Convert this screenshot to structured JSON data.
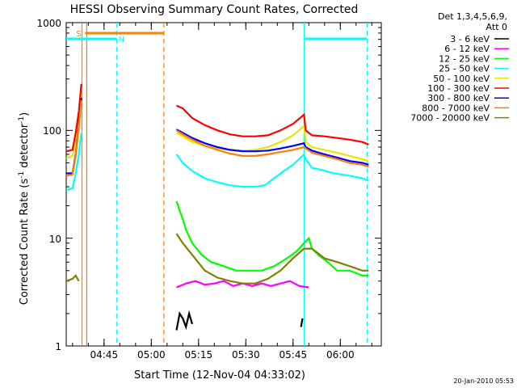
{
  "chart_data": {
    "type": "line",
    "title": "HESSI Observing Summary Count Rates, Corrected",
    "xlabel": "Start Time (12-Nov-04 04:33:02)",
    "ylabel": "Corrected Count Rate (s",
    "ylabel_sup": "-1",
    "ylabel_mid": " detector",
    "ylabel_tail": ")",
    "x_range_minutes_after_0433": [
      0,
      100
    ],
    "ylim": [
      1,
      1000
    ],
    "y_scale": "log",
    "x_ticks": [
      "04:45",
      "05:00",
      "05:15",
      "05:30",
      "05:45",
      "06:00"
    ],
    "y_ticks": [
      "1",
      "10",
      "100",
      "1000"
    ],
    "legend_header": [
      "Det 1,3,4,5,6,9,",
      "Att 0"
    ],
    "legend_position": "right",
    "footer": "20-Jan-2010 05:53",
    "annotations": [
      {
        "label": "S",
        "color": "#ff8000",
        "x_start_min": 6,
        "x_end_min": 31
      },
      {
        "label": "N",
        "color": "#00ffff",
        "x_start_min": 0,
        "x_end_min": 16
      }
    ],
    "vertical_markers": [
      {
        "x_min": 5,
        "color": "#ff8000",
        "style": "solid"
      },
      {
        "x_min": 6.5,
        "color": "#ff8000",
        "style": "solid"
      },
      {
        "x_min": 16,
        "color": "#00ffff",
        "style": "dashed"
      },
      {
        "x_min": 31,
        "color": "#ff8000",
        "style": "dashed"
      },
      {
        "x_min": 75.5,
        "color": "#00ffff",
        "style": "solid"
      },
      {
        "x_min": 95.5,
        "color": "#00ffff",
        "style": "dashed"
      }
    ],
    "series": [
      {
        "name": "3 - 6 keV",
        "color": "#000000",
        "points": [
          [
            35,
            1.4
          ],
          [
            36,
            2.0
          ],
          [
            37,
            1.8
          ],
          [
            38,
            1.5
          ],
          [
            39,
            2.0
          ],
          [
            40,
            1.6
          ],
          [
            74.5,
            1.5
          ],
          [
            75,
            1.8
          ]
        ]
      },
      {
        "name": "6 - 12 keV",
        "color": "#ff00ff",
        "points": [
          [
            35,
            3.5
          ],
          [
            38,
            3.8
          ],
          [
            41,
            4.0
          ],
          [
            44,
            3.7
          ],
          [
            47,
            3.8
          ],
          [
            50,
            4.0
          ],
          [
            53,
            3.6
          ],
          [
            56,
            3.8
          ],
          [
            59,
            3.6
          ],
          [
            62,
            3.8
          ],
          [
            65,
            3.6
          ],
          [
            68,
            3.8
          ],
          [
            71,
            4.0
          ],
          [
            74,
            3.6
          ],
          [
            77,
            3.5
          ]
        ]
      },
      {
        "name": "12 - 25 keV",
        "color": "#00ff00",
        "points": [
          [
            35,
            22
          ],
          [
            36,
            18
          ],
          [
            37,
            15
          ],
          [
            38,
            12
          ],
          [
            40,
            9
          ],
          [
            43,
            7
          ],
          [
            46,
            6
          ],
          [
            50,
            5.5
          ],
          [
            54,
            5
          ],
          [
            58,
            5
          ],
          [
            62,
            5
          ],
          [
            66,
            5.5
          ],
          [
            70,
            6.5
          ],
          [
            73,
            7.5
          ],
          [
            75.5,
            9
          ],
          [
            77,
            10
          ],
          [
            78,
            8
          ],
          [
            80,
            7
          ],
          [
            83,
            6
          ],
          [
            86,
            5
          ],
          [
            90,
            5
          ],
          [
            94,
            4.5
          ],
          [
            96,
            4.5
          ]
        ]
      },
      {
        "name": "25 - 50 keV",
        "color": "#00ffff",
        "points": [
          [
            0,
            28
          ],
          [
            2,
            29
          ],
          [
            3,
            40
          ],
          [
            4,
            60
          ],
          [
            4.8,
            95
          ],
          [
            35,
            60
          ],
          [
            37,
            50
          ],
          [
            40,
            42
          ],
          [
            44,
            36
          ],
          [
            48,
            33
          ],
          [
            52,
            31
          ],
          [
            56,
            30
          ],
          [
            60,
            30
          ],
          [
            63,
            31
          ],
          [
            66,
            36
          ],
          [
            69,
            42
          ],
          [
            72,
            48
          ],
          [
            75.5,
            60
          ],
          [
            76,
            54
          ],
          [
            78,
            45
          ],
          [
            81,
            43
          ],
          [
            85,
            40
          ],
          [
            90,
            38
          ],
          [
            94,
            36
          ],
          [
            96,
            34
          ]
        ]
      },
      {
        "name": "50 - 100 keV",
        "color": "#e6e600",
        "points": [
          [
            0,
            55
          ],
          [
            2,
            58
          ],
          [
            3,
            80
          ],
          [
            4,
            140
          ],
          [
            4.8,
            250
          ],
          [
            35,
            95
          ],
          [
            37,
            88
          ],
          [
            40,
            78
          ],
          [
            44,
            72
          ],
          [
            48,
            68
          ],
          [
            52,
            66
          ],
          [
            56,
            65
          ],
          [
            60,
            66
          ],
          [
            64,
            70
          ],
          [
            68,
            78
          ],
          [
            72,
            90
          ],
          [
            75.5,
            110
          ],
          [
            76,
            78
          ],
          [
            78,
            70
          ],
          [
            82,
            66
          ],
          [
            86,
            62
          ],
          [
            90,
            58
          ],
          [
            94,
            54
          ],
          [
            96,
            52
          ]
        ]
      },
      {
        "name": "100 - 300 keV",
        "color": "#ff0000",
        "points": [
          [
            0,
            64
          ],
          [
            2,
            66
          ],
          [
            3,
            95
          ],
          [
            4,
            150
          ],
          [
            4.8,
            270
          ],
          [
            35,
            170
          ],
          [
            37,
            160
          ],
          [
            40,
            130
          ],
          [
            44,
            112
          ],
          [
            48,
            100
          ],
          [
            52,
            92
          ],
          [
            56,
            88
          ],
          [
            60,
            88
          ],
          [
            64,
            90
          ],
          [
            68,
            100
          ],
          [
            72,
            115
          ],
          [
            75.5,
            140
          ],
          [
            76,
            100
          ],
          [
            78,
            90
          ],
          [
            82,
            88
          ],
          [
            86,
            85
          ],
          [
            90,
            82
          ],
          [
            94,
            78
          ],
          [
            96,
            74
          ]
        ]
      },
      {
        "name": "300 - 800 keV",
        "color": "#0000ff",
        "points": [
          [
            0,
            40
          ],
          [
            2,
            40
          ],
          [
            3,
            60
          ],
          [
            4,
            110
          ],
          [
            4.8,
            200
          ],
          [
            35,
            102
          ],
          [
            37,
            95
          ],
          [
            40,
            85
          ],
          [
            44,
            76
          ],
          [
            48,
            70
          ],
          [
            52,
            66
          ],
          [
            56,
            64
          ],
          [
            60,
            64
          ],
          [
            64,
            65
          ],
          [
            68,
            68
          ],
          [
            72,
            72
          ],
          [
            75.5,
            76
          ],
          [
            76,
            70
          ],
          [
            78,
            65
          ],
          [
            82,
            60
          ],
          [
            86,
            56
          ],
          [
            90,
            52
          ],
          [
            94,
            50
          ],
          [
            96,
            48
          ]
        ]
      },
      {
        "name": "800 - 7000 keV",
        "color": "#ff8000",
        "points": [
          [
            0,
            38
          ],
          [
            2,
            39
          ],
          [
            3,
            58
          ],
          [
            4,
            105
          ],
          [
            4.8,
            190
          ],
          [
            35,
            100
          ],
          [
            37,
            92
          ],
          [
            40,
            82
          ],
          [
            44,
            72
          ],
          [
            48,
            66
          ],
          [
            52,
            61
          ],
          [
            56,
            58
          ],
          [
            60,
            58
          ],
          [
            64,
            60
          ],
          [
            68,
            63
          ],
          [
            72,
            66
          ],
          [
            75.5,
            70
          ],
          [
            76,
            68
          ],
          [
            78,
            62
          ],
          [
            82,
            58
          ],
          [
            86,
            54
          ],
          [
            90,
            50
          ],
          [
            94,
            48
          ],
          [
            96,
            46
          ]
        ]
      },
      {
        "name": "7000 - 20000 keV",
        "color": "#808000",
        "points": [
          [
            0,
            4.0
          ],
          [
            2,
            4.2
          ],
          [
            3,
            4.5
          ],
          [
            4,
            4.0
          ],
          [
            35,
            11
          ],
          [
            37,
            9
          ],
          [
            40,
            7
          ],
          [
            44,
            5
          ],
          [
            48,
            4.3
          ],
          [
            52,
            4.0
          ],
          [
            56,
            3.8
          ],
          [
            60,
            3.8
          ],
          [
            64,
            4.2
          ],
          [
            68,
            5
          ],
          [
            72,
            6.5
          ],
          [
            75.5,
            8
          ],
          [
            78,
            8
          ],
          [
            82,
            6.5
          ],
          [
            86,
            6
          ],
          [
            90,
            5.5
          ],
          [
            94,
            5
          ],
          [
            96,
            5
          ]
        ]
      }
    ]
  }
}
